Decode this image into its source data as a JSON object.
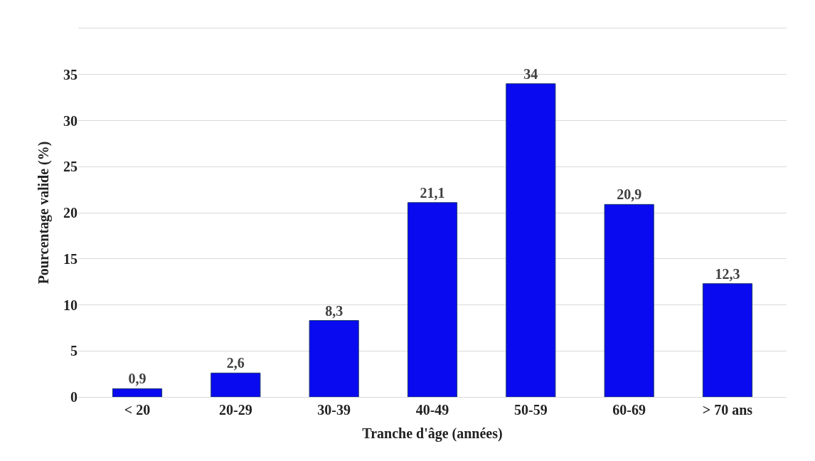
{
  "chart_data": {
    "type": "bar",
    "xlabel": "Tranche d'âge (années)",
    "ylabel": "Pourcentage valide (%)",
    "categories": [
      "< 20",
      "20-29",
      "30-39",
      "40-49",
      "50-59",
      "60-69",
      "> 70 ans"
    ],
    "values": [
      0.9,
      2.6,
      8.3,
      21.1,
      34,
      20.9,
      12.3
    ],
    "value_labels": [
      "0,9",
      "2,6",
      "8,3",
      "21,1",
      "34",
      "20,9",
      "12,3"
    ],
    "color": "#0a0af0",
    "ylim": [
      0,
      40
    ],
    "yticks": [
      0,
      5,
      10,
      15,
      20,
      25,
      30,
      35
    ],
    "grid": "y"
  }
}
